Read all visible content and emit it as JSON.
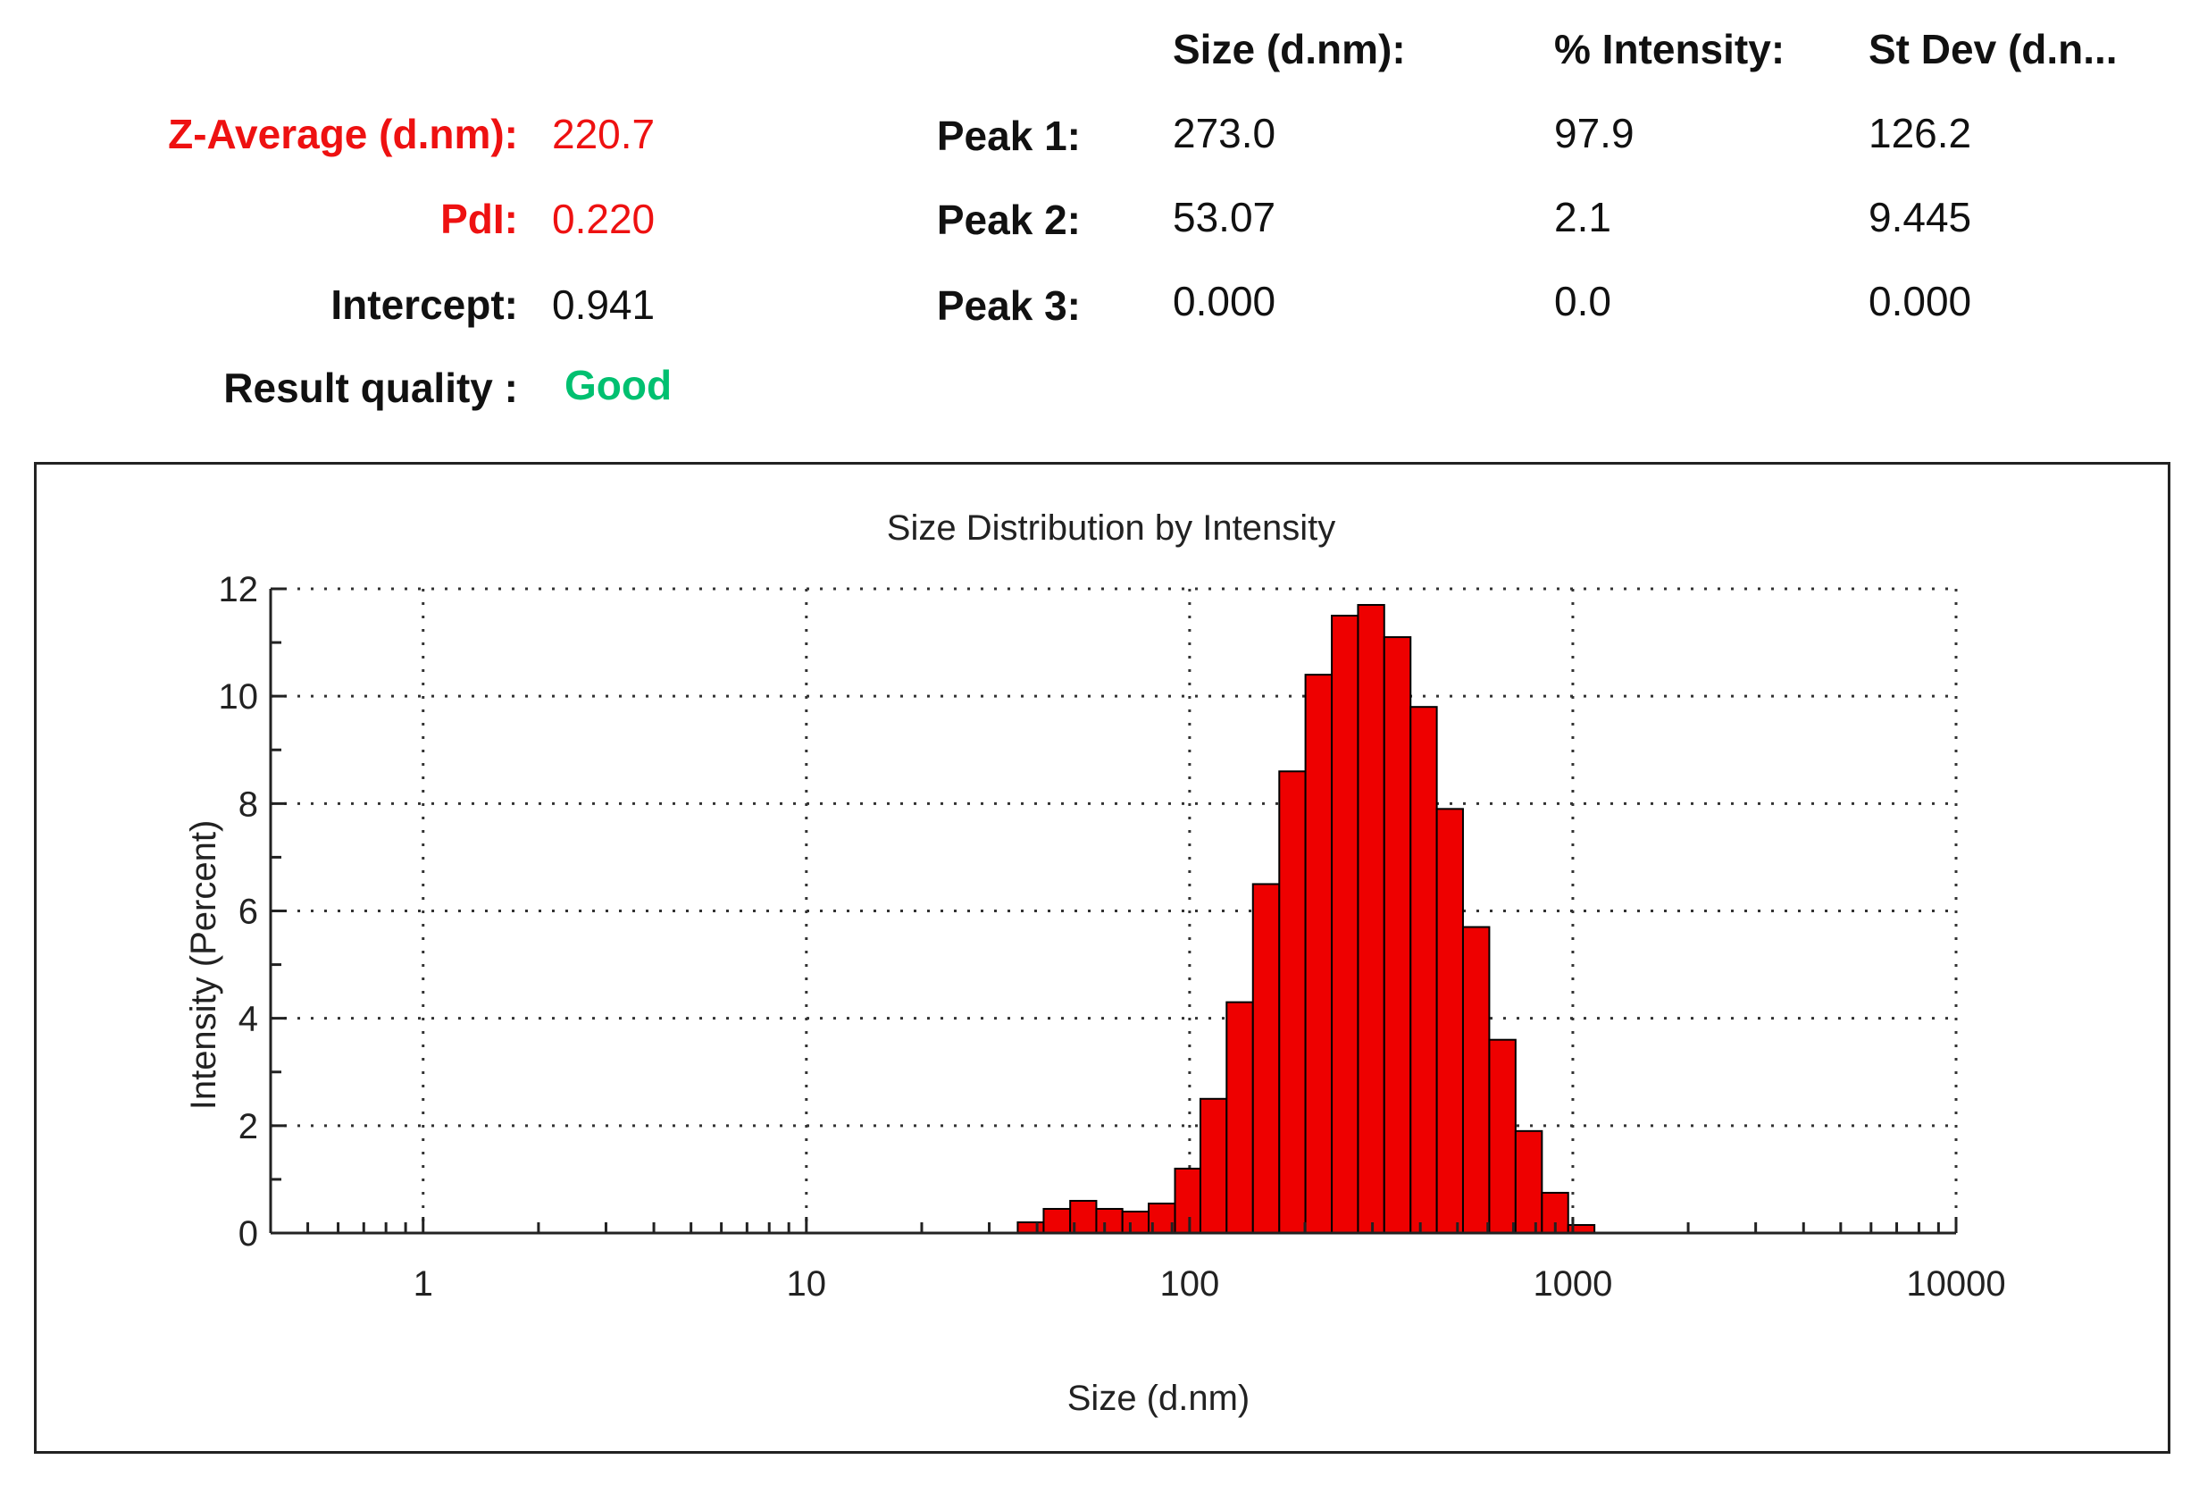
{
  "summary": {
    "z_average_label": "Z-Average (d.nm):",
    "z_average_value": "220.7",
    "pdi_label": "PdI:",
    "pdi_value": "0.220",
    "intercept_label": "Intercept:",
    "intercept_value": "0.941",
    "quality_label": "Result quality :",
    "quality_value": "Good"
  },
  "peaks": {
    "headers": [
      "Size (d.nm):",
      "% Intensity:",
      "St Dev (d.n..."
    ],
    "rows": [
      {
        "label": "Peak 1:",
        "size": "273.0",
        "intensity": "97.9",
        "stdev": "126.2"
      },
      {
        "label": "Peak 2:",
        "size": "53.07",
        "intensity": "2.1",
        "stdev": "9.445"
      },
      {
        "label": "Peak 3:",
        "size": "0.000",
        "intensity": "0.0",
        "stdev": "0.000"
      }
    ]
  },
  "colors": {
    "bar_fill": "#ee0000",
    "bar_stroke": "#000000",
    "highlight_red": "#ee1111",
    "quality_green": "#00c070"
  },
  "chart_data": {
    "type": "bar",
    "title": "Size Distribution by Intensity",
    "xlabel": "Size (d.nm)",
    "ylabel": "Intensity (Percent)",
    "xscale": "log",
    "xlim": [
      0.4,
      10000
    ],
    "ylim": [
      0,
      12
    ],
    "x_ticks": [
      1,
      10,
      100,
      1000,
      10000
    ],
    "x_tick_labels": [
      "1",
      "10",
      "100",
      "1000",
      "10000"
    ],
    "y_ticks": [
      0,
      2,
      4,
      6,
      8,
      10,
      12
    ],
    "y_tick_labels": [
      "0",
      "2",
      "4",
      "6",
      "8",
      "10",
      "12"
    ],
    "grid": true,
    "bins": [
      {
        "x0": 35.6,
        "x1": 41.6,
        "value": 0.2
      },
      {
        "x0": 41.6,
        "x1": 48.8,
        "value": 0.45
      },
      {
        "x0": 48.8,
        "x1": 57.1,
        "value": 0.6
      },
      {
        "x0": 57.1,
        "x1": 66.8,
        "value": 0.45
      },
      {
        "x0": 66.8,
        "x1": 78.2,
        "value": 0.4
      },
      {
        "x0": 78.2,
        "x1": 91.6,
        "value": 0.55
      },
      {
        "x0": 91.6,
        "x1": 106.7,
        "value": 1.2
      },
      {
        "x0": 106.7,
        "x1": 124.9,
        "value": 2.5
      },
      {
        "x0": 124.9,
        "x1": 146.3,
        "value": 4.3
      },
      {
        "x0": 146.3,
        "x1": 171.4,
        "value": 6.5
      },
      {
        "x0": 171.4,
        "x1": 200.6,
        "value": 8.6
      },
      {
        "x0": 200.6,
        "x1": 235.0,
        "value": 10.4
      },
      {
        "x0": 235.0,
        "x1": 275.1,
        "value": 11.5
      },
      {
        "x0": 275.1,
        "x1": 322.0,
        "value": 11.7
      },
      {
        "x0": 322.0,
        "x1": 377.2,
        "value": 11.1
      },
      {
        "x0": 377.2,
        "x1": 441.6,
        "value": 9.8
      },
      {
        "x0": 441.6,
        "x1": 516.9,
        "value": 7.9
      },
      {
        "x0": 516.9,
        "x1": 605.4,
        "value": 5.7
      },
      {
        "x0": 605.4,
        "x1": 709.0,
        "value": 3.6
      },
      {
        "x0": 709.0,
        "x1": 830.6,
        "value": 1.9
      },
      {
        "x0": 830.6,
        "x1": 972.5,
        "value": 0.75
      },
      {
        "x0": 972.5,
        "x1": 1138.8,
        "value": 0.15
      }
    ]
  }
}
